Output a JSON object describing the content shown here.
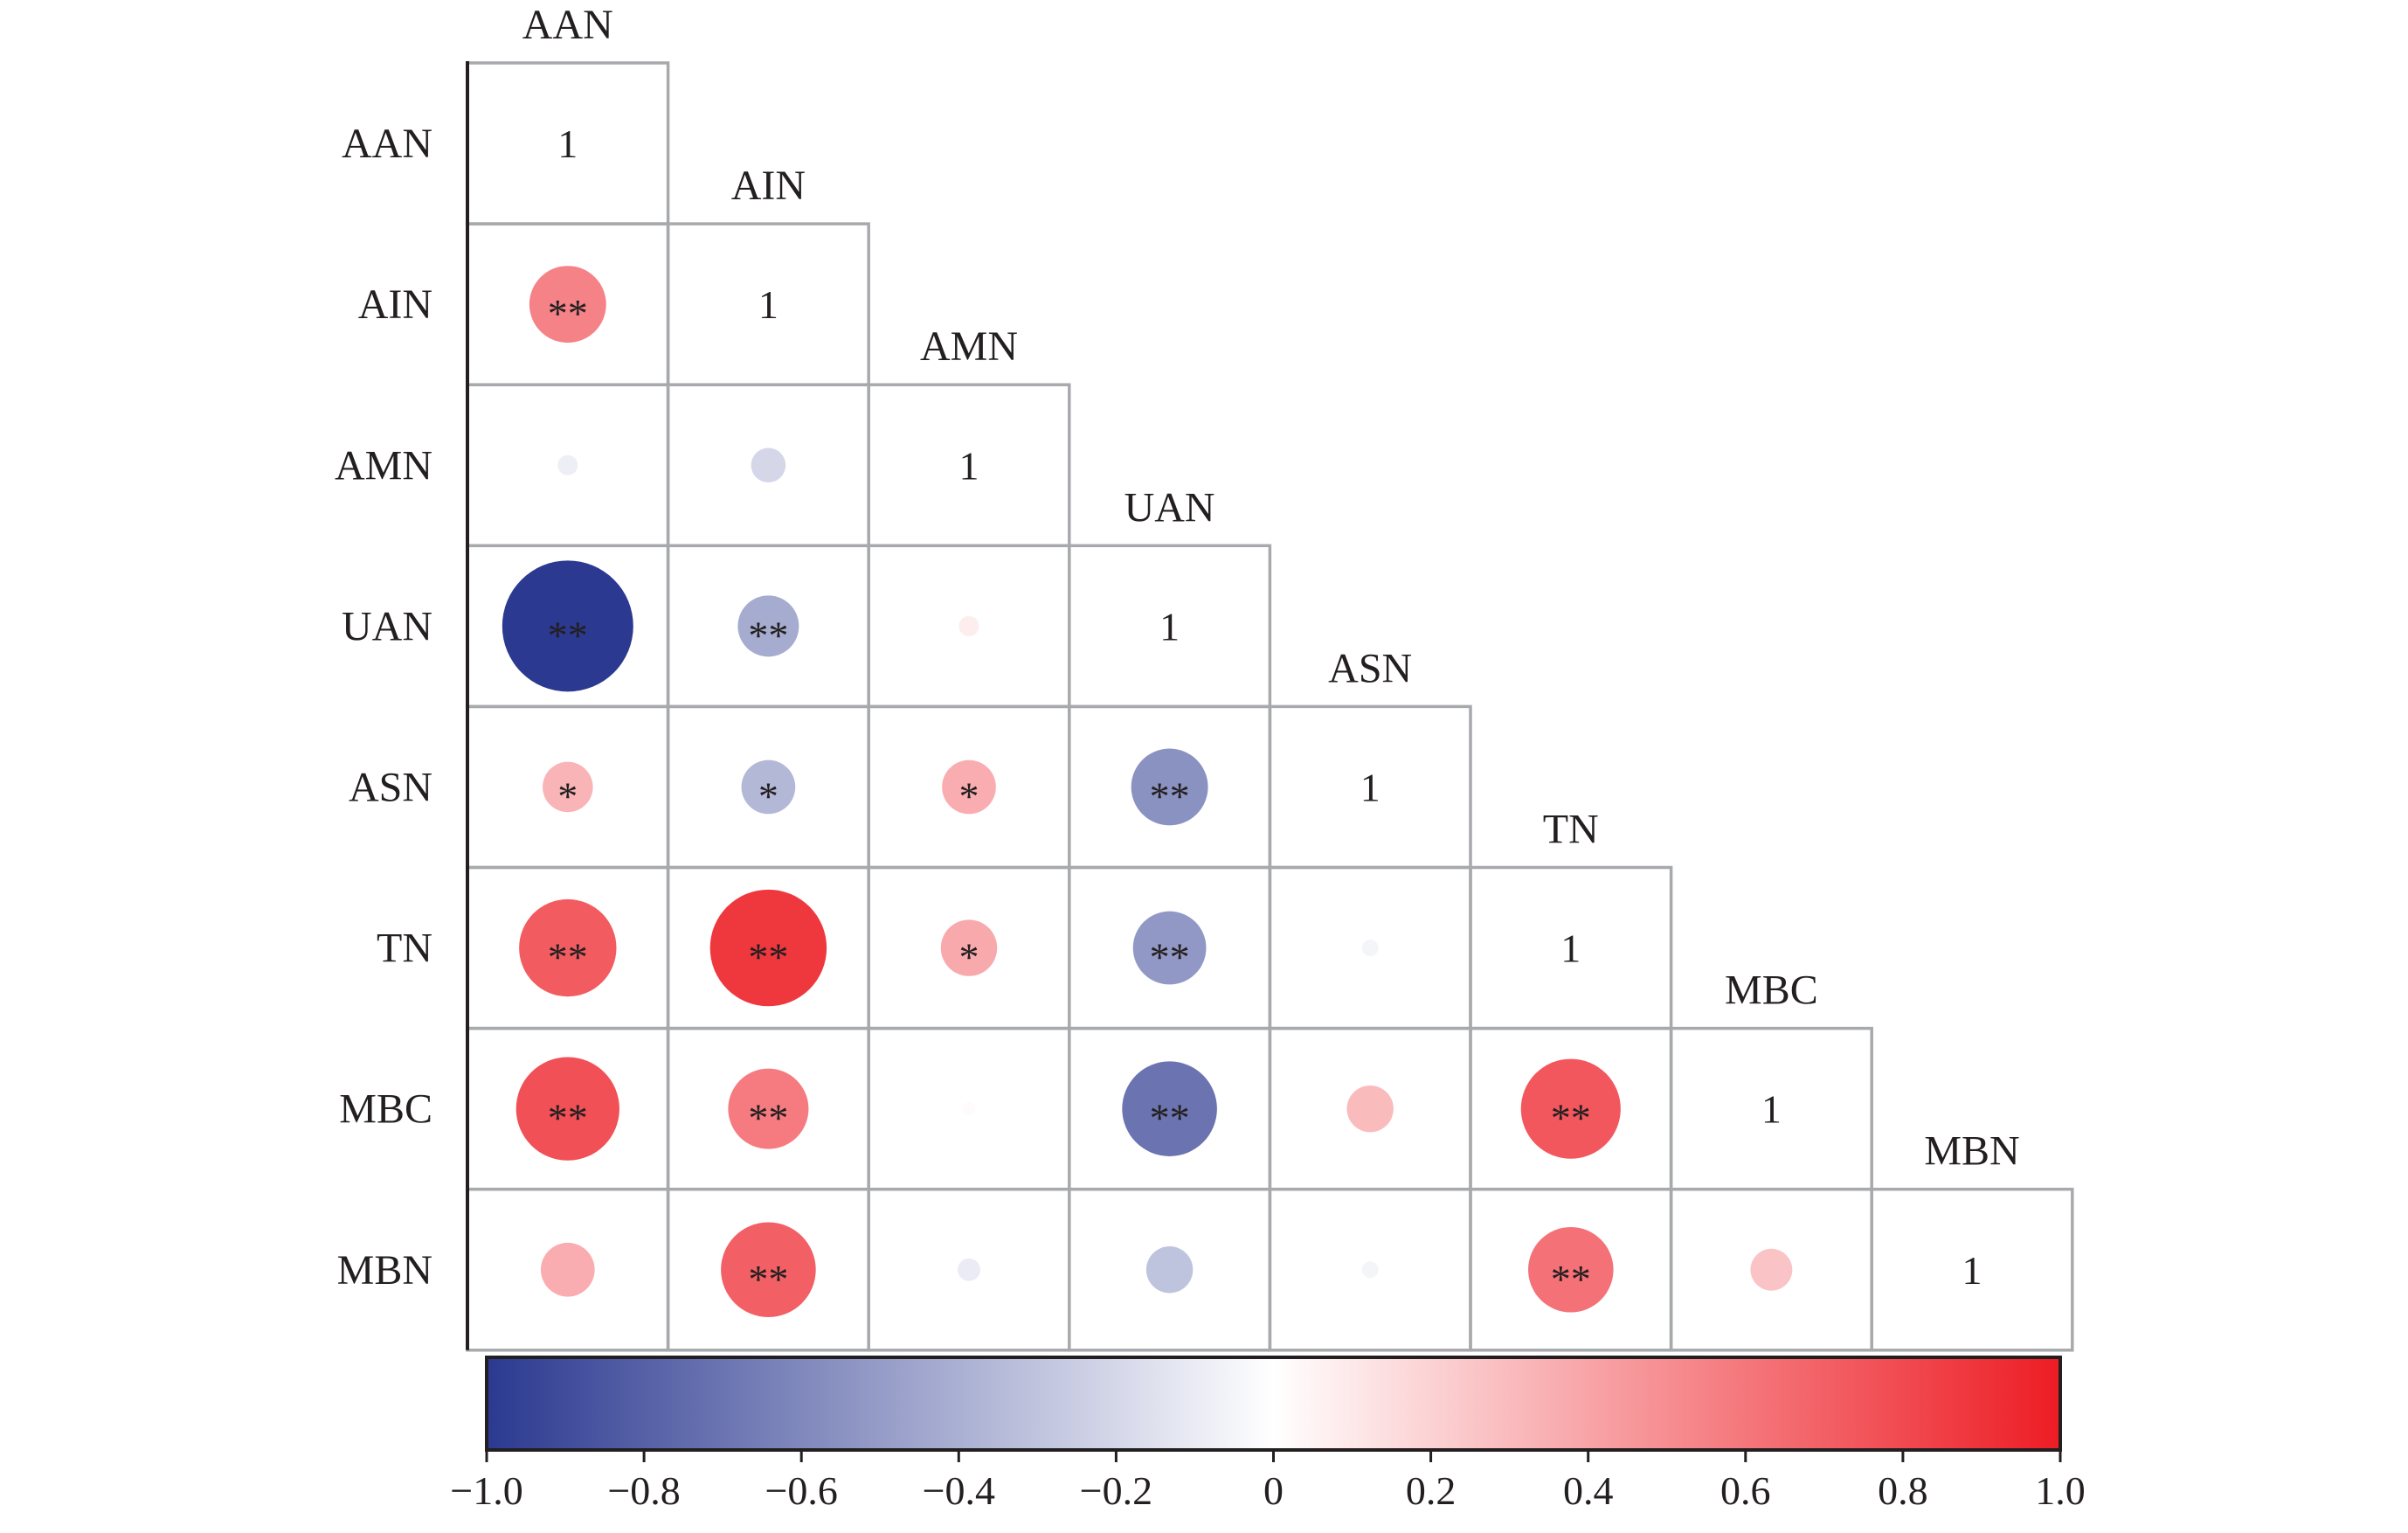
{
  "chart_data": {
    "type": "heatmap",
    "title": "",
    "variables": [
      "AAN",
      "AIN",
      "AMN",
      "UAN",
      "ASN",
      "TN",
      "MBC",
      "MBN"
    ],
    "layout": "lower-triangle",
    "value_encoding": "circle size and color",
    "diagonal_label": "1",
    "matrix": [
      [
        1.0,
        null,
        null,
        null,
        null,
        null,
        null,
        null
      ],
      [
        0.55,
        1.0,
        null,
        null,
        null,
        null,
        null,
        null
      ],
      [
        -0.08,
        -0.2,
        1.0,
        null,
        null,
        null,
        null,
        null
      ],
      [
        -1.0,
        -0.42,
        0.08,
        1.0,
        null,
        null,
        null,
        null
      ],
      [
        0.33,
        -0.36,
        0.36,
        -0.55,
        1.0,
        null,
        null,
        null
      ],
      [
        0.72,
        0.88,
        0.38,
        -0.52,
        -0.05,
        1.0,
        null,
        null
      ],
      [
        0.77,
        0.58,
        0.02,
        -0.7,
        0.3,
        0.74,
        1.0,
        null
      ],
      [
        0.36,
        0.7,
        -0.1,
        -0.3,
        -0.05,
        0.62,
        0.26,
        1.0
      ]
    ],
    "significance": [
      [
        "",
        "",
        "",
        "",
        "",
        "",
        "",
        ""
      ],
      [
        "**",
        "",
        "",
        "",
        "",
        "",
        "",
        ""
      ],
      [
        "",
        "",
        "",
        "",
        "",
        "",
        "",
        ""
      ],
      [
        "**",
        "**",
        "",
        "",
        "",
        "",
        "",
        ""
      ],
      [
        "*",
        "*",
        "*",
        "**",
        "",
        "",
        "",
        ""
      ],
      [
        "**",
        "**",
        "*",
        "**",
        "",
        "",
        "",
        ""
      ],
      [
        "**",
        "**",
        "",
        "**",
        "",
        "**",
        "",
        ""
      ],
      [
        "",
        "**",
        "",
        "",
        "",
        "**",
        "",
        ""
      ]
    ],
    "colorbar": {
      "range": [
        -1.0,
        1.0
      ],
      "ticks": [
        "−1.0",
        "−0.8",
        "−0.6",
        "−0.4",
        "−0.2",
        "0",
        "0.2",
        "0.4",
        "0.6",
        "0.8",
        "1.0"
      ],
      "colors": {
        "negative": "#2b3990",
        "neutral": "#ffffff",
        "positive": "#ed1c24"
      }
    },
    "grid_color": "#a7a9ac"
  }
}
